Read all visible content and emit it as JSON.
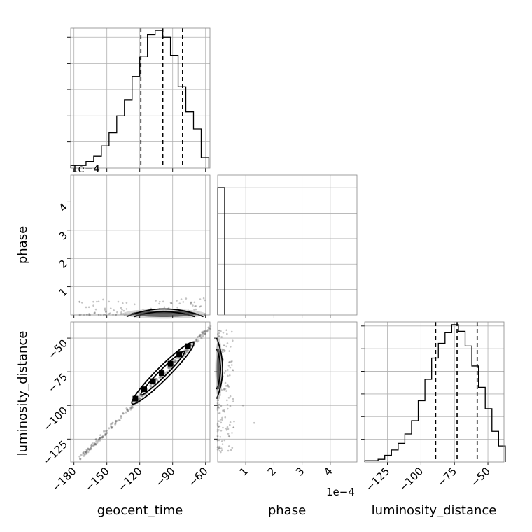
{
  "chart_data": {
    "type": "corner",
    "parameters": [
      "geocent_time",
      "phase",
      "luminosity_distance"
    ],
    "labels": {
      "geocent_time": "geocent_time",
      "phase": "phase",
      "luminosity_distance": "luminosity_distance"
    },
    "phase_offset_text": "1e−4",
    "ranges": {
      "geocent_time": [
        -183,
        -56
      ],
      "phase": [
        0,
        0.000495
      ],
      "luminosity_distance": [
        -142,
        -38
      ]
    },
    "ticks": {
      "geocent_time": [
        -180,
        -150,
        -120,
        -90,
        -60
      ],
      "phase_x": [
        1,
        2,
        3,
        4
      ],
      "phase_y": [
        1,
        2,
        3,
        4
      ],
      "luminosity_distance_x": [
        -125,
        -100,
        -75,
        -50
      ],
      "luminosity_distance_y": [
        -50,
        -75,
        -100,
        -125
      ]
    },
    "tick_labels": {
      "geocent_time": [
        "−180",
        "−150",
        "−120",
        "−90",
        "−60"
      ],
      "phase": [
        "1",
        "2",
        "3",
        "4"
      ],
      "luminosity_distance_x": [
        "−125",
        "−100",
        "−75",
        "−50"
      ],
      "luminosity_distance_y": [
        "−50",
        "−75",
        "−100",
        "−125"
      ]
    },
    "histograms": {
      "geocent_time": {
        "bin_edges": [
          -183,
          -176,
          -169,
          -162,
          -155,
          -148,
          -141,
          -134,
          -127,
          -120,
          -113,
          -106,
          -99,
          -92,
          -85,
          -78,
          -71,
          -64,
          -57
        ],
        "counts": [
          2,
          2,
          5,
          9,
          17,
          27,
          40,
          52,
          70,
          85,
          102,
          105,
          100,
          86,
          62,
          43,
          30,
          8
        ],
        "quantiles": [
          -119,
          -99,
          -81
        ]
      },
      "phase": {
        "bin_edges": [
          0,
          2.48e-05
        ],
        "counts": [
          1
        ],
        "quantiles": []
      },
      "luminosity_distance": {
        "bin_edges": [
          -142,
          -137,
          -132,
          -127,
          -122,
          -117,
          -112,
          -107,
          -102,
          -97,
          -92,
          -87,
          -82,
          -77,
          -72,
          -67,
          -62,
          -57,
          -52,
          -47,
          -42,
          -37
        ],
        "counts": [
          1,
          1,
          2,
          5,
          9,
          14,
          21,
          31,
          46,
          62,
          78,
          89,
          97,
          103,
          98,
          87,
          72,
          56,
          40,
          23,
          12
        ],
        "quantiles": [
          -89,
          -73,
          -58
        ]
      }
    },
    "joint_geocent_luminosity": {
      "relation": "linear",
      "points": [
        [
          -172,
          -137
        ],
        [
          -160,
          -127
        ],
        [
          -148,
          -116
        ],
        [
          -136,
          -104
        ],
        [
          -124,
          -95
        ],
        [
          -116,
          -88
        ],
        [
          -108,
          -82
        ],
        [
          -100,
          -76
        ],
        [
          -92,
          -69
        ],
        [
          -84,
          -62
        ],
        [
          -76,
          -56
        ],
        [
          -68,
          -50
        ],
        [
          -60,
          -45
        ]
      ]
    },
    "show_grid": true,
    "panels": [
      "hist-geocent_time",
      "joint-phase-geocent_time",
      "hist-phase",
      "joint-luminosity_distance-geocent_time",
      "joint-luminosity_distance-phase",
      "hist-luminosity_distance"
    ]
  }
}
